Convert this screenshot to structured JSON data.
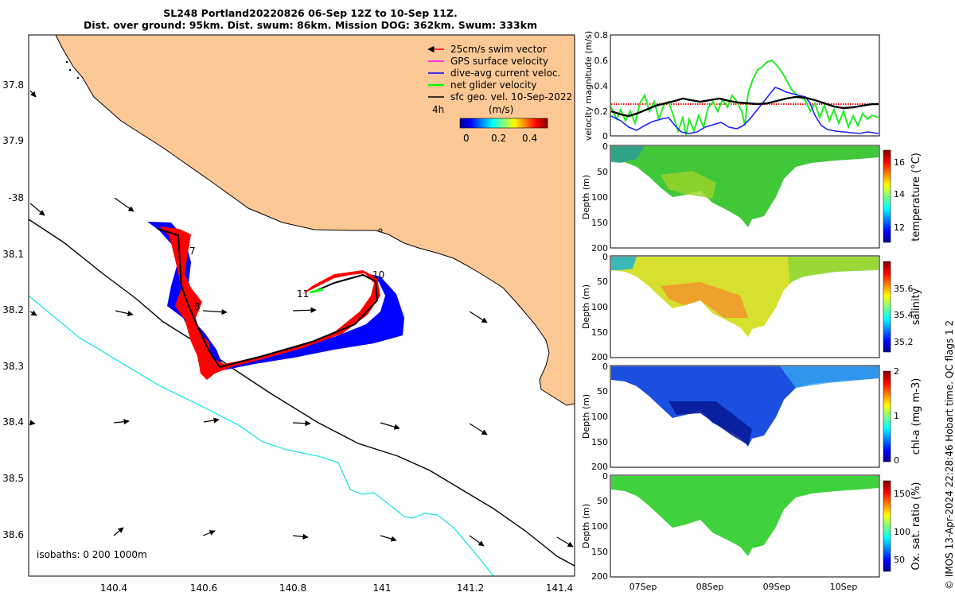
{
  "title": {
    "line1": "SL248 Portland20220826 06-Sep 12Z to 10-Sep 11Z.",
    "line2": "Dist. over ground: 95km. Dist. swum: 86km. Mission DOG: 362km. Swum: 333km"
  },
  "map": {
    "lon_ticks": [
      "140.4",
      "140.6",
      "140.8",
      "141",
      "141.2",
      "141.4"
    ],
    "lat_ticks": [
      "37.8",
      "37.9",
      "-38",
      "38.1",
      "38.2",
      "38.3",
      "38.4",
      "38.5",
      "38.6"
    ],
    "legend": [
      {
        "label": "25cm/s swim vector",
        "color": "#ff0000"
      },
      {
        "label": "GPS surface velocity",
        "color": "#ff00ff"
      },
      {
        "label": "dive-avg current veloc.",
        "color": "#0000ff"
      },
      {
        "label": "net glider velocity",
        "color": "#00ff00"
      },
      {
        "label": "sfc geo. vel. 10-Sep-2022",
        "color": "#000000"
      }
    ],
    "interval_label": "4h",
    "colorbar": {
      "unit": "(m/s)",
      "ticks": [
        "0",
        "0.2",
        "0.4"
      ]
    },
    "day_markers": [
      "7",
      "8",
      "10",
      "11"
    ],
    "isobath_label": "isobaths: 0   200  1000m",
    "land_color": "#fcc895",
    "isobath_200_color": "#000000",
    "isobath_1000_color": "#2ee6e6"
  },
  "velocity_panel": {
    "ylabel": "velocity magnitude (m/s)",
    "y_ticks": [
      "0.8",
      "0.6",
      "0.4",
      "0.2",
      "0"
    ]
  },
  "sections": [
    {
      "id": "temperature",
      "label": "temperature (°C)",
      "cbar_ticks": [
        "16",
        "14",
        "12"
      ]
    },
    {
      "id": "salinity",
      "label": "salinity",
      "cbar_ticks": [
        "35.6",
        "35.4",
        "35.2"
      ]
    },
    {
      "id": "chla",
      "label": "chl-a (mg m-3)",
      "cbar_ticks": [
        "2",
        "1",
        "0"
      ]
    },
    {
      "id": "oxygen",
      "label": "Ox. sat. ratio (%)",
      "cbar_ticks": [
        "150",
        "100",
        "50"
      ]
    }
  ],
  "depth_axis": {
    "label": "Depth (m)",
    "ticks": [
      "0",
      "50",
      "100",
      "150",
      "200"
    ]
  },
  "time_ticks": [
    "07Sep",
    "08Sep",
    "09Sep",
    "10Sep"
  ],
  "copyright": "© IMOS 13-Apr-2024 22:28:46 Hobart time. QC flags 1  2"
}
